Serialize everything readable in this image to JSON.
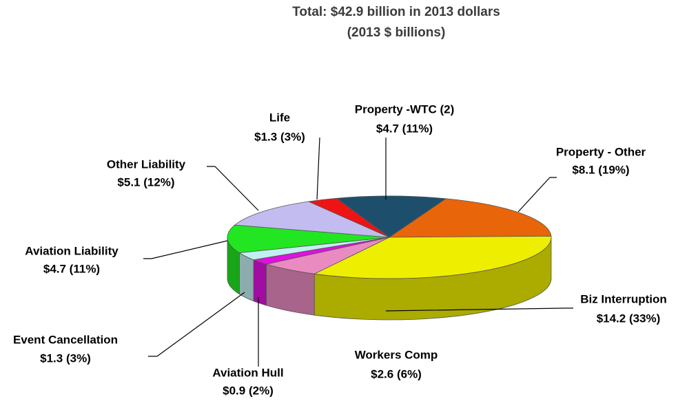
{
  "chart_data": {
    "type": "pie",
    "title": "Total: $42.9 billion in 2013 dollars",
    "subtitle": "(2013 $ billions)",
    "categories": [
      "Property -WTC (2)",
      "Property - Other",
      "Biz Interruption",
      "Workers Comp",
      "Aviation Hull",
      "Event Cancellation",
      "Aviation Liability",
      "Other Liability",
      "Life"
    ],
    "values": [
      4.7,
      8.1,
      14.2,
      2.6,
      0.9,
      1.3,
      4.7,
      5.1,
      1.3
    ],
    "value_labels": [
      "$4.7 (11%)",
      "$8.1 (19%)",
      "$14.2 (33%)",
      "$2.6 (6%)",
      "$0.9 (2%)",
      "$1.3 (3%)",
      "$4.7 (11%)",
      "$5.1 (12%)",
      "$1.3 (3%)"
    ],
    "colors": [
      "#1d4f6c",
      "#e8650a",
      "#eeee00",
      "#e98bc0",
      "#e010e0",
      "#c2eff0",
      "#22e622",
      "#c2bcf0",
      "#ee1414"
    ]
  }
}
